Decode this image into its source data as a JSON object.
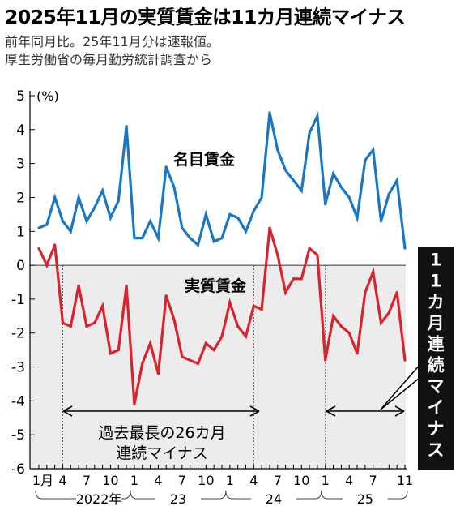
{
  "title": "2025年11月の実質賃金は11カ月連続マイナス",
  "subtitle_1": "前年同月比。25年11月分は速報値。",
  "subtitle_2": "厚生労働省の毎月勤労統計調査から",
  "colors": {
    "nominal": "#1a78c2",
    "real": "#d9232d",
    "shade": "#ececec",
    "callout_bg": "#111111"
  },
  "chart_data": {
    "type": "line",
    "ylabel": "(%)",
    "ylim": [
      -6,
      5
    ],
    "yticks": [
      "5",
      "4",
      "3",
      "2",
      "1",
      "0",
      "-1",
      "-2",
      "-3",
      "-4",
      "-5",
      "-6"
    ],
    "x_tick_labels": [
      "1月",
      "4",
      "7",
      "10",
      "1",
      "4",
      "7",
      "10",
      "1",
      "4",
      "7",
      "10",
      "1",
      "4",
      "7",
      "11"
    ],
    "year_labels": [
      "2022年",
      "23",
      "24",
      "25"
    ],
    "x": [
      "2022-01",
      "2022-02",
      "2022-03",
      "2022-04",
      "2022-05",
      "2022-06",
      "2022-07",
      "2022-08",
      "2022-09",
      "2022-10",
      "2022-11",
      "2022-12",
      "2023-01",
      "2023-02",
      "2023-03",
      "2023-04",
      "2023-05",
      "2023-06",
      "2023-07",
      "2023-08",
      "2023-09",
      "2023-10",
      "2023-11",
      "2023-12",
      "2024-01",
      "2024-02",
      "2024-03",
      "2024-04",
      "2024-05",
      "2024-06",
      "2024-07",
      "2024-08",
      "2024-09",
      "2024-10",
      "2024-11",
      "2024-12",
      "2025-01",
      "2025-02",
      "2025-03",
      "2025-04",
      "2025-05",
      "2025-06",
      "2025-07",
      "2025-08",
      "2025-09",
      "2025-10",
      "2025-11"
    ],
    "series": [
      {
        "name": "名目賃金",
        "values": [
          1.1,
          1.2,
          2.0,
          1.3,
          1.0,
          2.0,
          1.3,
          1.7,
          2.2,
          1.4,
          1.9,
          4.1,
          0.8,
          0.8,
          1.3,
          0.8,
          2.9,
          2.3,
          1.1,
          0.8,
          0.6,
          1.5,
          0.7,
          0.8,
          1.5,
          1.4,
          1.0,
          1.6,
          2.0,
          4.5,
          3.4,
          2.8,
          2.5,
          2.2,
          3.9,
          4.4,
          1.8,
          2.7,
          2.3,
          2.0,
          1.4,
          3.1,
          3.4,
          1.3,
          2.1,
          2.5,
          0.5
        ]
      },
      {
        "name": "実質賃金",
        "values": [
          0.5,
          0.0,
          0.6,
          -1.7,
          -1.8,
          -0.6,
          -1.8,
          -1.7,
          -1.2,
          -2.6,
          -2.5,
          -0.6,
          -4.1,
          -2.9,
          -2.3,
          -3.2,
          -0.9,
          -1.6,
          -2.7,
          -2.8,
          -2.9,
          -2.3,
          -2.5,
          -2.1,
          -1.1,
          -1.8,
          -2.1,
          -1.2,
          -1.3,
          1.1,
          0.3,
          -0.8,
          -0.4,
          -0.4,
          0.5,
          0.3,
          -2.8,
          -1.5,
          -1.8,
          -2.0,
          -2.6,
          -0.8,
          -0.2,
          -1.7,
          -1.4,
          -0.8,
          -2.8
        ]
      }
    ],
    "annotations": {
      "streak_2022": "過去最長の26カ月\n連続マイナス",
      "streak_2025": "11カ月連続マイナス"
    },
    "grid": false
  }
}
